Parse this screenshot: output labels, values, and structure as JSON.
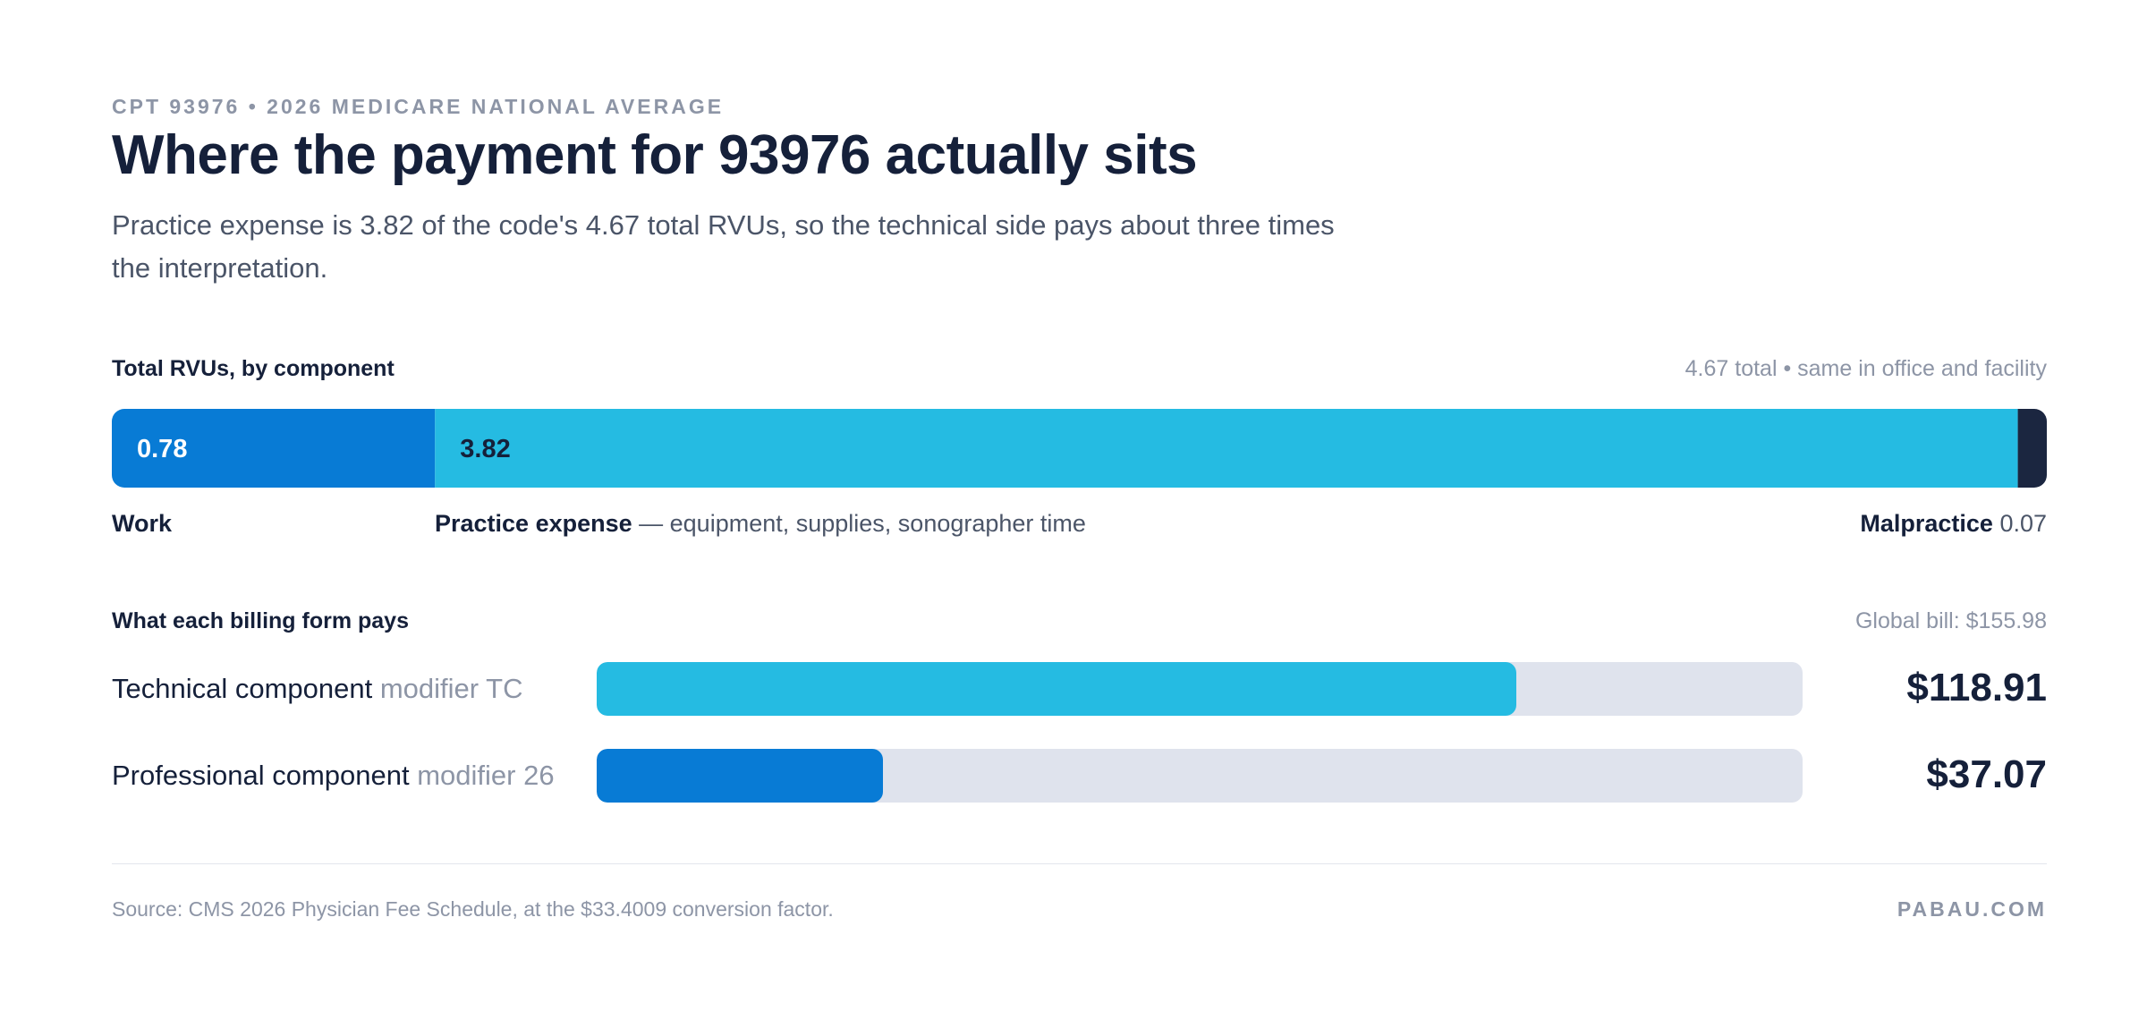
{
  "header": {
    "eyebrow": "CPT 93976 • 2026 MEDICARE NATIONAL AVERAGE",
    "title": "Where the payment for 93976 actually sits",
    "subtitle": "Practice expense is 3.82 of the code's 4.67 total RVUs, so the technical side pays about three times the interpretation."
  },
  "rvu_section": {
    "label": "Total RVUs, by component",
    "note": "4.67 total • same in office and facility",
    "work_label": "Work",
    "pe_label": "Practice expense",
    "pe_desc": " — equipment, supplies, sonographer time",
    "mp_label": "Malpractice",
    "mp_value": "0.07"
  },
  "payment_section": {
    "label": "What each billing form pays",
    "note": "Global bill: $155.98",
    "rows": [
      {
        "name": "Technical component",
        "modifier": " modifier TC",
        "display": "$118.91"
      },
      {
        "name": "Professional component",
        "modifier": " modifier 26",
        "display": "$37.07"
      }
    ]
  },
  "footer": {
    "source": "Source: CMS 2026 Physician Fee Schedule, at the $33.4009 conversion factor.",
    "brand": "PABAU.COM"
  },
  "colors": {
    "work": "#087bd5",
    "practice_expense": "#25bbe2",
    "malpractice": "#1b2640",
    "track": "#dfe3ed"
  },
  "chart_data": [
    {
      "type": "bar",
      "stacked": true,
      "orientation": "horizontal",
      "title": "Total RVUs, by component",
      "total": 4.67,
      "xlim": [
        0,
        4.67
      ],
      "series": [
        {
          "name": "Work",
          "values": [
            0.78
          ],
          "label": "0.78"
        },
        {
          "name": "Practice expense",
          "values": [
            3.82
          ],
          "label": "3.82"
        },
        {
          "name": "Malpractice",
          "values": [
            0.07
          ],
          "label": ""
        }
      ]
    },
    {
      "type": "bar",
      "orientation": "horizontal",
      "title": "What each billing form pays",
      "categories": [
        "Technical component",
        "Professional component"
      ],
      "values": [
        118.91,
        37.07
      ],
      "xlim": [
        0,
        155.98
      ]
    }
  ]
}
